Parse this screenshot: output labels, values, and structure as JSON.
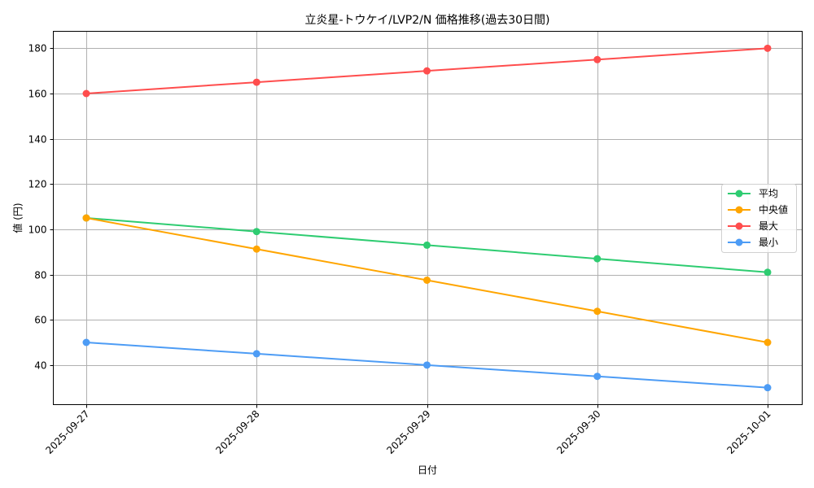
{
  "chart_data": {
    "type": "line",
    "title": "立炎星-トウケイ/LVP2/N 価格推移(過去30日間)",
    "xlabel": "日付",
    "ylabel": "値 (円)",
    "categories": [
      "2025-09-27",
      "2025-09-28",
      "2025-09-29",
      "2025-09-30",
      "2025-10-01"
    ],
    "series": [
      {
        "name": "平均",
        "color": "#2ecc71",
        "values": [
          105,
          99,
          93,
          87,
          81
        ]
      },
      {
        "name": "中央値",
        "color": "#ffa500",
        "values": [
          105,
          91.25,
          77.5,
          63.75,
          50
        ]
      },
      {
        "name": "最大",
        "color": "#ff4d4d",
        "values": [
          160,
          165,
          170,
          175,
          180
        ]
      },
      {
        "name": "最小",
        "color": "#4d9cf5",
        "values": [
          50,
          45,
          40,
          35,
          30
        ]
      }
    ],
    "ylim": [
      22.5,
      187.5
    ],
    "yticks": [
      40,
      60,
      80,
      100,
      120,
      140,
      160,
      180
    ],
    "grid": true,
    "legend_position": "center right",
    "markers": true
  }
}
